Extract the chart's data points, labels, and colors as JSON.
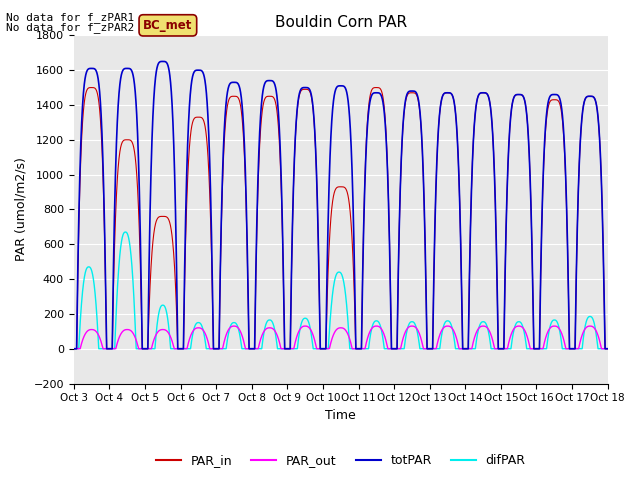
{
  "title": "Bouldin Corn PAR",
  "xlabel": "Time",
  "ylabel": "PAR (umol/m2/s)",
  "ylim": [
    -200,
    1800
  ],
  "yticks": [
    -200,
    0,
    200,
    400,
    600,
    800,
    1000,
    1200,
    1400,
    1600,
    1800
  ],
  "xtick_labels": [
    "Oct 3",
    "Oct 4",
    "Oct 5",
    "Oct 6",
    "Oct 7",
    "Oct 8",
    "Oct 9",
    "Oct 10",
    "Oct 11",
    "Oct 12",
    "Oct 13",
    "Oct 14",
    "Oct 15",
    "Oct 16",
    "Oct 17",
    "Oct 18"
  ],
  "no_data_text1": "No data for f_zPAR1",
  "no_data_text2": "No data for f_zPAR2",
  "legend_label": "BC_met",
  "line_colors": {
    "PAR_in": "#cc0000",
    "PAR_out": "#ff00ff",
    "totPAR": "#0000cc",
    "difPAR": "#00eeee"
  },
  "day_peaks": {
    "totPAR": [
      1610,
      1610,
      1650,
      1600,
      1530,
      1540,
      1500,
      1510,
      1470,
      1480,
      1470,
      1470,
      1460,
      1460,
      1450
    ],
    "PAR_in": [
      1500,
      1200,
      760,
      1330,
      1450,
      1450,
      1490,
      930,
      1500,
      1470,
      1470,
      1470,
      1460,
      1430,
      1450
    ],
    "PAR_out": [
      110,
      110,
      110,
      120,
      130,
      120,
      130,
      120,
      130,
      130,
      130,
      130,
      130,
      130,
      130
    ],
    "difPAR": [
      470,
      670,
      250,
      150,
      150,
      165,
      175,
      440,
      160,
      155,
      160,
      155,
      155,
      165,
      185
    ]
  },
  "bg_color": "#e8e8e8",
  "fig_bg": "#ffffff"
}
